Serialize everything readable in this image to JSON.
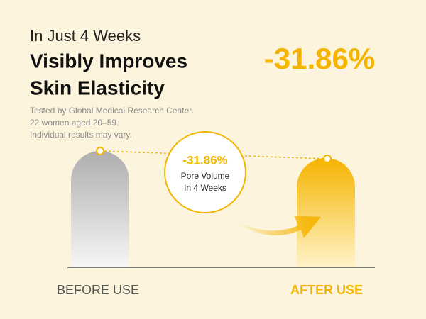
{
  "header": {
    "subtitle": "In Just 4 Weeks",
    "title_lines": [
      "Visibly Improves",
      "Skin Elasticity"
    ],
    "highlight": "-31.86%",
    "notes": [
      "Tested by Global Medical Research Center.",
      "22 women aged 20–59.",
      "Individual results may vary."
    ]
  },
  "badge": {
    "value": "-31.86%",
    "lines": [
      "Pore Volume",
      "In 4 Weeks"
    ]
  },
  "labels": {
    "before": "BEFORE USE",
    "after": "AFTER USE"
  }
}
